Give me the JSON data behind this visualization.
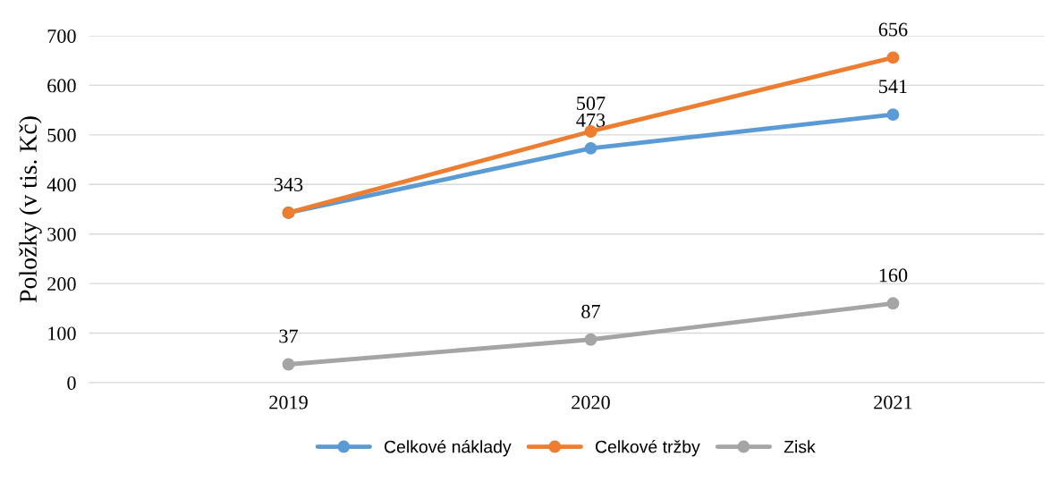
{
  "chart_data": {
    "type": "line",
    "ylabel": "Položky (v tis. Kč)",
    "categories": [
      "2019",
      "2020",
      "2021"
    ],
    "series": [
      {
        "name": "Celkové náklady",
        "color": "#5b9bd5",
        "values": [
          343,
          473,
          541
        ],
        "value_labels": [
          "343",
          "473",
          "541"
        ]
      },
      {
        "name": "Celkové tržby",
        "color": "#ed7d31",
        "values": [
          343,
          507,
          656
        ],
        "value_labels": [
          null,
          "507",
          "656"
        ]
      },
      {
        "name": "Zisk",
        "color": "#a5a5a5",
        "values": [
          37,
          87,
          160
        ],
        "value_labels": [
          "37",
          "87",
          "160"
        ]
      }
    ],
    "ylim": [
      0,
      700
    ],
    "yticks": [
      0,
      100,
      200,
      300,
      400,
      500,
      600,
      700
    ],
    "grid": "y",
    "legend": "bottom",
    "marker": "circle",
    "line_style": "solid"
  }
}
